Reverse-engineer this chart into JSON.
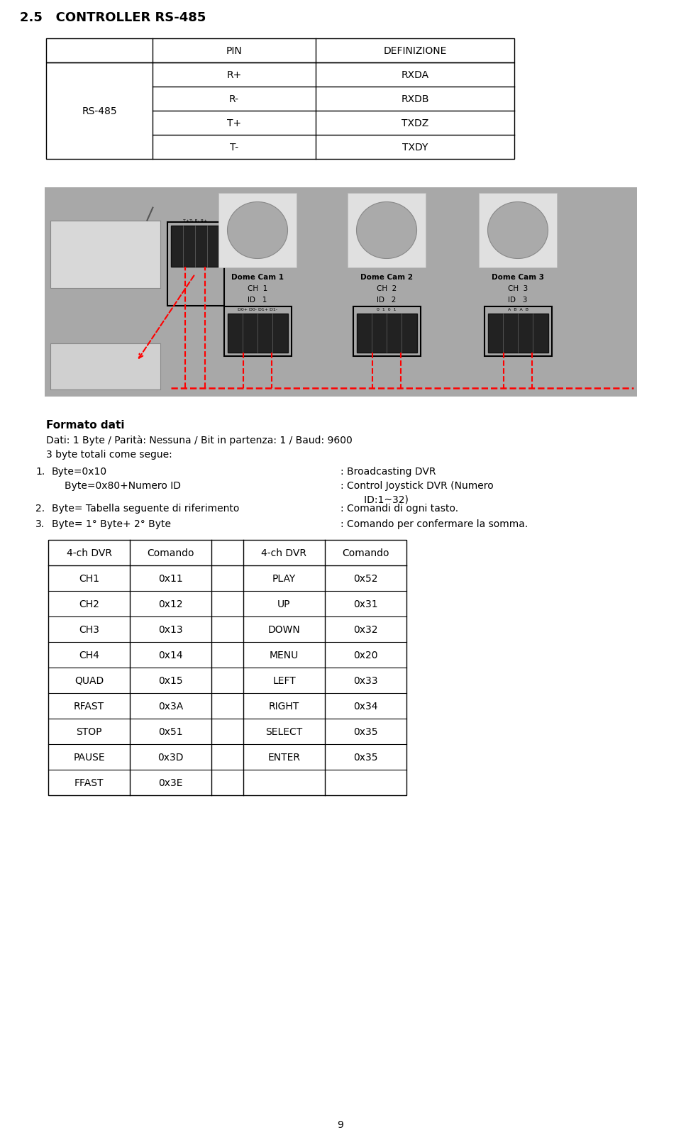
{
  "title": "2.5   CONTROLLER RS-485",
  "page_number": "9",
  "top_table": {
    "col0_header": "",
    "col1_header": "PIN",
    "col2_header": "DEFINIZIONE",
    "row_label": "RS-485",
    "rows": [
      [
        "R+",
        "RXDA"
      ],
      [
        "R-",
        "RXDB"
      ],
      [
        "T+",
        "TXDZ"
      ],
      [
        "T-",
        "TXDY"
      ]
    ]
  },
  "format_dati": {
    "bold_title": "Formato dati",
    "line1": "Dati: 1 Byte / Parità: Nessuna / Bit in partenza: 1 / Baud: 9600",
    "line2": "3 byte totali come segue:",
    "item1_left1": "Byte=0x10",
    "item1_left2": "Byte=0x80+Numero ID",
    "item1_right1": ": Broadcasting DVR",
    "item1_right2": ": Control Joystick DVR (Numero",
    "item1_right3": "   ID:1~32)",
    "item2_left": "Byte= Tabella seguente di riferimento",
    "item2_right": ": Comandi di ogni tasto.",
    "item3_left": "Byte= 1° Byte+ 2° Byte",
    "item3_right": ": Comando per confermare la somma."
  },
  "bottom_table": {
    "headers": [
      "4-ch DVR",
      "Comando",
      "",
      "4-ch DVR",
      "Comando"
    ],
    "rows": [
      [
        "CH1",
        "0x11",
        "",
        "PLAY",
        "0x52"
      ],
      [
        "CH2",
        "0x12",
        "",
        "UP",
        "0x31"
      ],
      [
        "CH3",
        "0x13",
        "",
        "DOWN",
        "0x32"
      ],
      [
        "CH4",
        "0x14",
        "",
        "MENU",
        "0x20"
      ],
      [
        "QUAD",
        "0x15",
        "",
        "LEFT",
        "0x33"
      ],
      [
        "RFAST",
        "0x3A",
        "",
        "RIGHT",
        "0x34"
      ],
      [
        "STOP",
        "0x51",
        "",
        "SELECT",
        "0x35"
      ],
      [
        "PAUSE",
        "0x3D",
        "",
        "ENTER",
        "0x35"
      ],
      [
        "FFAST",
        "0x3E",
        "",
        "",
        ""
      ]
    ]
  },
  "bg_color": "#ffffff",
  "text_color": "#000000",
  "gray_img_color": "#a8a8a8",
  "font_size_title": 13,
  "font_size_body": 10,
  "font_size_table": 10
}
